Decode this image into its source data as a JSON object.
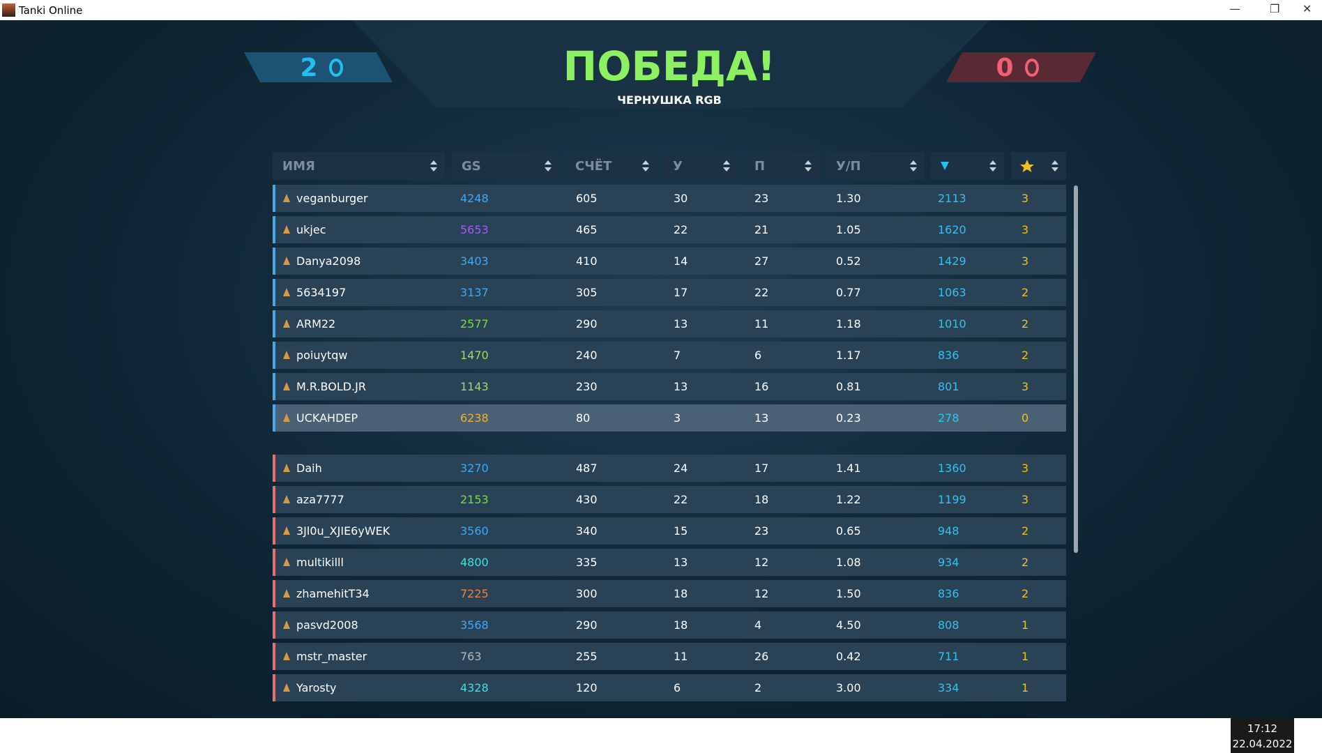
{
  "window": {
    "title": "Tanki Online"
  },
  "score": {
    "blue": 2,
    "red": 0
  },
  "header": {
    "title": "ПОБЕДА!",
    "map": "ЧЕРНУШКА RGB"
  },
  "table": {
    "columns": [
      "ИМЯ",
      "GS",
      "СЧЁТ",
      "У",
      "П",
      "У/П"
    ],
    "teams": [
      {
        "stripe": "#4aa8e8",
        "rows": [
          [
            "veganburger",
            4248,
            605,
            30,
            23,
            "1.30",
            2113,
            3
          ],
          [
            "ukjec",
            5653,
            465,
            22,
            21,
            "1.05",
            1620,
            3
          ],
          [
            "Danya2098",
            3403,
            410,
            14,
            27,
            "0.52",
            1429,
            3
          ],
          [
            "5634197",
            3137,
            305,
            17,
            22,
            "0.77",
            1063,
            2
          ],
          [
            "ARM22",
            2577,
            290,
            13,
            11,
            "1.18",
            1010,
            2
          ],
          [
            "poiuytqw",
            1470,
            240,
            7,
            6,
            "1.17",
            836,
            2
          ],
          [
            "M.R.BOLD.JR",
            1143,
            230,
            13,
            16,
            "0.81",
            801,
            3
          ],
          [
            "UCKAHDEP",
            6238,
            80,
            3,
            13,
            "0.23",
            278,
            0
          ]
        ],
        "gs_colors": [
          "#3fa9f5",
          "#a25cf0",
          "#3fa9f5",
          "#3fa9f5",
          "#6ee03a",
          "#9fd86a",
          "#9fd86a",
          "#f0b030"
        ]
      },
      {
        "stripe": "#e87070",
        "rows": [
          [
            "Daih",
            3270,
            487,
            24,
            17,
            "1.41",
            1360,
            3
          ],
          [
            "aza7777",
            2153,
            430,
            22,
            18,
            "1.22",
            1199,
            3
          ],
          [
            "3Jl0u_XJIE6yWEK",
            3560,
            340,
            15,
            23,
            "0.65",
            948,
            2
          ],
          [
            "multikilll",
            4800,
            335,
            13,
            12,
            "1.08",
            934,
            2
          ],
          [
            "zhamehitT34",
            7225,
            300,
            18,
            12,
            "1.50",
            836,
            2
          ],
          [
            "pasvd2008",
            3568,
            290,
            18,
            4,
            "4.50",
            808,
            1
          ],
          [
            "mstr_master",
            763,
            255,
            11,
            26,
            "0.42",
            711,
            1
          ],
          [
            "Yarosty",
            4328,
            120,
            6,
            2,
            "3.00",
            334,
            1
          ]
        ],
        "gs_colors": [
          "#3fa9f5",
          "#6ee03a",
          "#3fa9f5",
          "#3fe0e0",
          "#f08040",
          "#3fa9f5",
          "#b0b8c0",
          "#3fe0e0"
        ]
      }
    ]
  },
  "taskbar": {
    "time": "17:12",
    "date": "22.04.2022"
  }
}
